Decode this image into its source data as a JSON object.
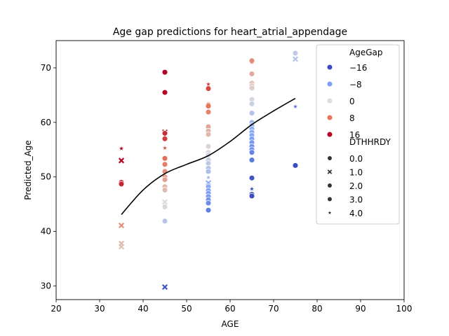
{
  "chart_data": {
    "type": "scatter",
    "title": "Age gap predictions for heart_atrial_appendage",
    "xlabel": "AGE",
    "ylabel": "Predicted_Age",
    "xlim": [
      20,
      100
    ],
    "ylim": [
      27.5,
      75
    ],
    "xticks": [
      "20",
      "30",
      "40",
      "50",
      "60",
      "70",
      "80",
      "90",
      "100"
    ],
    "yticks": [
      "30",
      "40",
      "50",
      "60",
      "70"
    ],
    "grid": false,
    "legend_position": "top-right",
    "hue": {
      "name": "AgeGap",
      "entries": [
        {
          "label": "−16",
          "value": -16,
          "color": "#3b4cc0"
        },
        {
          "label": "−8",
          "value": -8,
          "color": "#7b9ff9"
        },
        {
          "label": "0",
          "value": 0,
          "color": "#dddddd"
        },
        {
          "label": "8",
          "value": 8,
          "color": "#e7745b"
        },
        {
          "label": "16",
          "value": 16,
          "color": "#b40426"
        }
      ]
    },
    "style": {
      "name": "DTHHRDY",
      "entries": [
        {
          "label": "0.0",
          "marker": "circle"
        },
        {
          "label": "1.0",
          "marker": "x"
        },
        {
          "label": "2.0",
          "marker": "circle"
        },
        {
          "label": "3.0",
          "marker": "circle"
        },
        {
          "label": "4.0",
          "marker": "star"
        }
      ]
    },
    "points": [
      {
        "x": 35,
        "y": 55.2,
        "m": "star"
      },
      {
        "x": 35,
        "y": 53.0,
        "m": "x"
      },
      {
        "x": 35,
        "y": 49.0,
        "m": "circle"
      },
      {
        "x": 35,
        "y": 48.7,
        "m": "circle"
      },
      {
        "x": 35,
        "y": 41.1,
        "m": "x"
      },
      {
        "x": 35,
        "y": 37.8,
        "m": "x"
      },
      {
        "x": 35,
        "y": 37.2,
        "m": "x"
      },
      {
        "x": 45,
        "y": 69.2,
        "m": "circle"
      },
      {
        "x": 45,
        "y": 65.5,
        "m": "circle"
      },
      {
        "x": 45,
        "y": 58.2,
        "m": "x"
      },
      {
        "x": 45,
        "y": 58.0,
        "m": "circle"
      },
      {
        "x": 45,
        "y": 57.0,
        "m": "circle"
      },
      {
        "x": 45,
        "y": 55.3,
        "m": "star"
      },
      {
        "x": 45,
        "y": 53.4,
        "m": "circle"
      },
      {
        "x": 45,
        "y": 52.3,
        "m": "circle"
      },
      {
        "x": 45,
        "y": 51.0,
        "m": "circle"
      },
      {
        "x": 45,
        "y": 50.0,
        "m": "circle"
      },
      {
        "x": 45,
        "y": 49.5,
        "m": "circle"
      },
      {
        "x": 45,
        "y": 48.2,
        "m": "circle"
      },
      {
        "x": 45,
        "y": 47.6,
        "m": "circle"
      },
      {
        "x": 45,
        "y": 45.4,
        "m": "x"
      },
      {
        "x": 45,
        "y": 44.5,
        "m": "circle"
      },
      {
        "x": 45,
        "y": 41.9,
        "m": "circle"
      },
      {
        "x": 45,
        "y": 29.8,
        "m": "x"
      },
      {
        "x": 55,
        "y": 67.0,
        "m": "star"
      },
      {
        "x": 55,
        "y": 66.2,
        "m": "circle"
      },
      {
        "x": 55,
        "y": 63.2,
        "m": "circle"
      },
      {
        "x": 55,
        "y": 63.0,
        "m": "circle"
      },
      {
        "x": 55,
        "y": 61.9,
        "m": "circle"
      },
      {
        "x": 55,
        "y": 59.2,
        "m": "circle"
      },
      {
        "x": 55,
        "y": 58.4,
        "m": "circle"
      },
      {
        "x": 55,
        "y": 57.8,
        "m": "circle"
      },
      {
        "x": 55,
        "y": 55.6,
        "m": "circle"
      },
      {
        "x": 55,
        "y": 54.5,
        "m": "circle"
      },
      {
        "x": 55,
        "y": 54.0,
        "m": "circle"
      },
      {
        "x": 55,
        "y": 53.1,
        "m": "circle"
      },
      {
        "x": 55,
        "y": 52.5,
        "m": "circle"
      },
      {
        "x": 55,
        "y": 51.6,
        "m": "circle"
      },
      {
        "x": 55,
        "y": 51.0,
        "m": "circle"
      },
      {
        "x": 55,
        "y": 49.9,
        "m": "star"
      },
      {
        "x": 55,
        "y": 48.9,
        "m": "x"
      },
      {
        "x": 55,
        "y": 48.2,
        "m": "circle"
      },
      {
        "x": 55,
        "y": 47.5,
        "m": "circle"
      },
      {
        "x": 55,
        "y": 47.0,
        "m": "circle"
      },
      {
        "x": 55,
        "y": 46.4,
        "m": "circle"
      },
      {
        "x": 55,
        "y": 45.8,
        "m": "circle"
      },
      {
        "x": 55,
        "y": 45.2,
        "m": "circle"
      },
      {
        "x": 55,
        "y": 43.9,
        "m": "circle"
      },
      {
        "x": 65,
        "y": 71.3,
        "m": "circle"
      },
      {
        "x": 65,
        "y": 71.0,
        "m": "star"
      },
      {
        "x": 65,
        "y": 68.9,
        "m": "circle"
      },
      {
        "x": 65,
        "y": 67.2,
        "m": "circle"
      },
      {
        "x": 65,
        "y": 66.7,
        "m": "circle"
      },
      {
        "x": 65,
        "y": 66.3,
        "m": "circle"
      },
      {
        "x": 65,
        "y": 64.2,
        "m": "circle"
      },
      {
        "x": 65,
        "y": 63.4,
        "m": "circle"
      },
      {
        "x": 65,
        "y": 61.7,
        "m": "circle"
      },
      {
        "x": 65,
        "y": 60.0,
        "m": "circle"
      },
      {
        "x": 65,
        "y": 59.4,
        "m": "circle"
      },
      {
        "x": 65,
        "y": 58.8,
        "m": "circle"
      },
      {
        "x": 65,
        "y": 58.2,
        "m": "circle"
      },
      {
        "x": 65,
        "y": 57.6,
        "m": "circle"
      },
      {
        "x": 65,
        "y": 57.0,
        "m": "circle"
      },
      {
        "x": 65,
        "y": 56.3,
        "m": "circle"
      },
      {
        "x": 65,
        "y": 55.6,
        "m": "circle"
      },
      {
        "x": 65,
        "y": 55.0,
        "m": "circle"
      },
      {
        "x": 65,
        "y": 54.5,
        "m": "circle"
      },
      {
        "x": 65,
        "y": 53.1,
        "m": "circle"
      },
      {
        "x": 65,
        "y": 49.8,
        "m": "circle"
      },
      {
        "x": 65,
        "y": 47.8,
        "m": "star"
      },
      {
        "x": 65,
        "y": 46.8,
        "m": "circle"
      },
      {
        "x": 65,
        "y": 46.5,
        "m": "circle"
      },
      {
        "x": 75,
        "y": 72.7,
        "m": "circle"
      },
      {
        "x": 75,
        "y": 71.6,
        "m": "x"
      },
      {
        "x": 75,
        "y": 62.9,
        "m": "star"
      },
      {
        "x": 75,
        "y": 52.1,
        "m": "circle"
      }
    ],
    "trend": {
      "x": [
        35,
        40,
        45,
        50,
        55,
        60,
        65,
        70,
        75
      ],
      "y": [
        43.1,
        47.6,
        50.6,
        52.3,
        53.9,
        56.5,
        59.6,
        62.1,
        64.4
      ]
    }
  }
}
